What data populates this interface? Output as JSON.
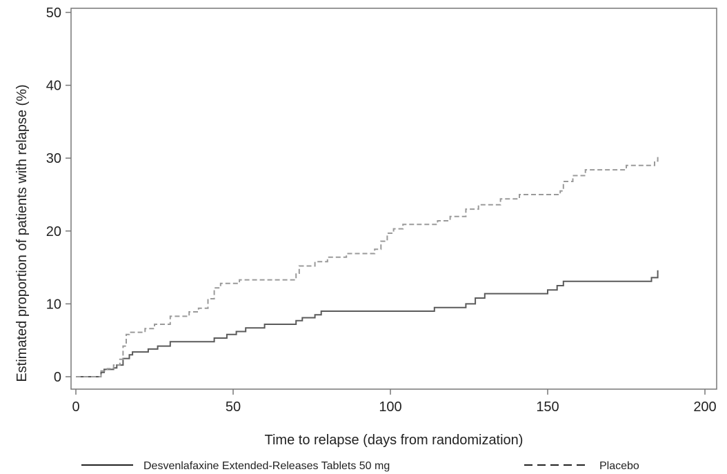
{
  "chart_data": {
    "type": "line",
    "title": "",
    "xlabel": "Time to relapse (days from randomization)",
    "ylabel": "Estimated proportion of patients with relapse (%)",
    "xlim": [
      0,
      200
    ],
    "ylim": [
      0,
      50
    ],
    "xticks": [
      0,
      50,
      100,
      150,
      200
    ],
    "yticks": [
      0,
      10,
      20,
      30,
      40,
      50
    ],
    "grid": false,
    "legend_position": "bottom",
    "series": [
      {
        "name": "Desvenlafaxine Extended-Releases Tablets 50 mg",
        "line_style": "solid",
        "color": "#5a5a5a",
        "points": [
          [
            0,
            0
          ],
          [
            7,
            0
          ],
          [
            8,
            0.6
          ],
          [
            9,
            1.0
          ],
          [
            12,
            1.2
          ],
          [
            13,
            1.6
          ],
          [
            15,
            2.5
          ],
          [
            17,
            3.0
          ],
          [
            18,
            3.4
          ],
          [
            23,
            3.8
          ],
          [
            26,
            4.2
          ],
          [
            30,
            4.8
          ],
          [
            44,
            5.3
          ],
          [
            48,
            5.8
          ],
          [
            51,
            6.2
          ],
          [
            54,
            6.7
          ],
          [
            60,
            7.2
          ],
          [
            70,
            7.7
          ],
          [
            72,
            8.1
          ],
          [
            76,
            8.5
          ],
          [
            78,
            9.0
          ],
          [
            114,
            9.5
          ],
          [
            124,
            10.0
          ],
          [
            127,
            10.8
          ],
          [
            130,
            11.4
          ],
          [
            150,
            11.9
          ],
          [
            153,
            12.5
          ],
          [
            155,
            13.1
          ],
          [
            183,
            13.6
          ],
          [
            185,
            14.2
          ],
          [
            185,
            14.6
          ]
        ]
      },
      {
        "name": "Placebo",
        "line_style": "dashed",
        "color": "#9a9a9a",
        "points": [
          [
            0,
            0
          ],
          [
            7,
            0
          ],
          [
            8,
            0.8
          ],
          [
            10,
            1.1
          ],
          [
            12,
            1.6
          ],
          [
            14,
            2.4
          ],
          [
            15,
            4.2
          ],
          [
            16,
            5.8
          ],
          [
            17,
            6.1
          ],
          [
            22,
            6.6
          ],
          [
            25,
            7.2
          ],
          [
            30,
            8.3
          ],
          [
            36,
            8.9
          ],
          [
            39,
            9.4
          ],
          [
            42,
            10.7
          ],
          [
            44,
            12.2
          ],
          [
            46,
            12.8
          ],
          [
            52,
            13.3
          ],
          [
            70,
            14.2
          ],
          [
            71,
            15.2
          ],
          [
            76,
            15.8
          ],
          [
            80,
            16.4
          ],
          [
            86,
            16.9
          ],
          [
            95,
            17.5
          ],
          [
            97,
            18.6
          ],
          [
            99,
            19.7
          ],
          [
            101,
            20.3
          ],
          [
            104,
            20.9
          ],
          [
            115,
            21.4
          ],
          [
            119,
            22.0
          ],
          [
            124,
            23.0
          ],
          [
            128,
            23.6
          ],
          [
            135,
            24.4
          ],
          [
            141,
            25.0
          ],
          [
            154,
            25.5
          ],
          [
            155,
            26.8
          ],
          [
            158,
            27.6
          ],
          [
            162,
            28.4
          ],
          [
            175,
            29.0
          ],
          [
            184,
            29.6
          ],
          [
            185,
            30.5
          ]
        ]
      }
    ]
  }
}
